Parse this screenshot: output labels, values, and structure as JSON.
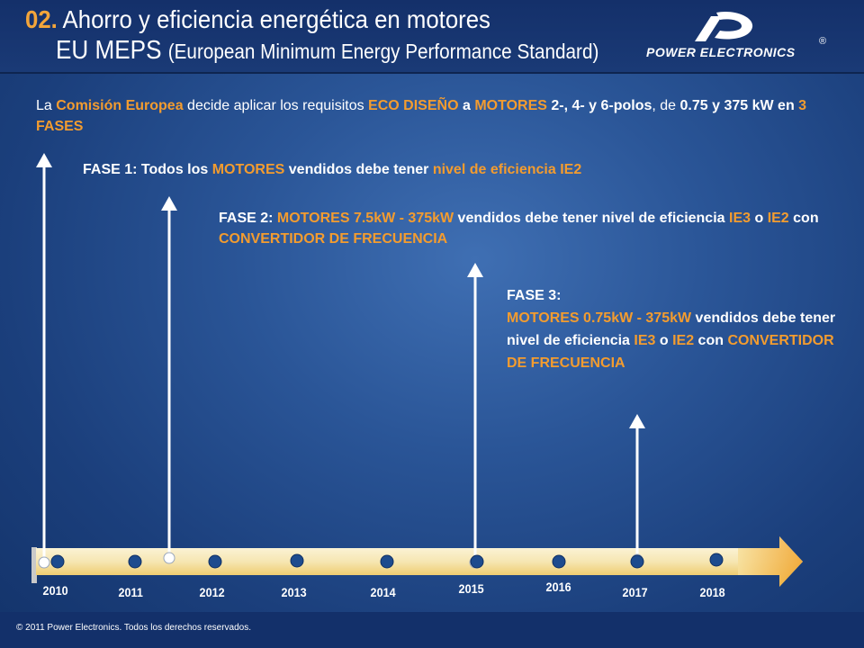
{
  "header": {
    "number": "02.",
    "title_line1": " Ahorro y eficiencia energética en motores",
    "title_line2_main": "EU MEPS ",
    "title_line2_sub": "(European Minimum Energy Performance Standard)"
  },
  "logo": {
    "text": "POWER ELECTRONICS",
    "reg": "®"
  },
  "intro": {
    "p1": "La ",
    "p2": "Comisión Europea",
    "p3": "  decide aplicar los requisitos ",
    "p4": "ECO DISEÑO",
    "p5": " a ",
    "p6": "MOTORES",
    "p7": " 2-, 4- y 6-polos",
    "p8": ", de ",
    "p9": "0.75 y 375 kW en ",
    "p10": "3 FASES"
  },
  "fase1": {
    "p1": "FASE 1: Todos los ",
    "p2": "MOTORES",
    "p3": " vendidos debe tener ",
    "p4": "nivel de eficiencia IE2"
  },
  "fase2": {
    "p1": "FASE 2: ",
    "p2": "MOTORES 7.5kW - 375kW",
    "p3": " vendidos debe tener nivel de eficiencia ",
    "p4": "IE3",
    "p5": " o ",
    "p6": "IE2",
    "p7": " con ",
    "p8": "CONVERTIDOR DE FRECUENCIA"
  },
  "fase3": {
    "heading": "FASE 3:",
    "p1": "MOTORES 0.75kW - 375kW",
    "p2": " vendidos debe tener nivel de eficiencia ",
    "p3": "IE3",
    "p4": " o ",
    "p5": "IE2",
    "p6": " con ",
    "p7": "CONVERTIDOR DE FRECUENCIA"
  },
  "timeline": {
    "years": [
      "2010",
      "2011",
      "2012",
      "2013",
      "2014",
      "2015",
      "2016",
      "2017",
      "2018"
    ],
    "milestone_years": [
      "2010",
      "2011",
      "2015",
      "2017"
    ]
  },
  "colors": {
    "accent": "#f39c2f",
    "background": "#2a5597",
    "dot": "#1d4b8e"
  },
  "footer": {
    "copyright": "© 2011 Power Electronics. Todos los derechos reservados."
  }
}
